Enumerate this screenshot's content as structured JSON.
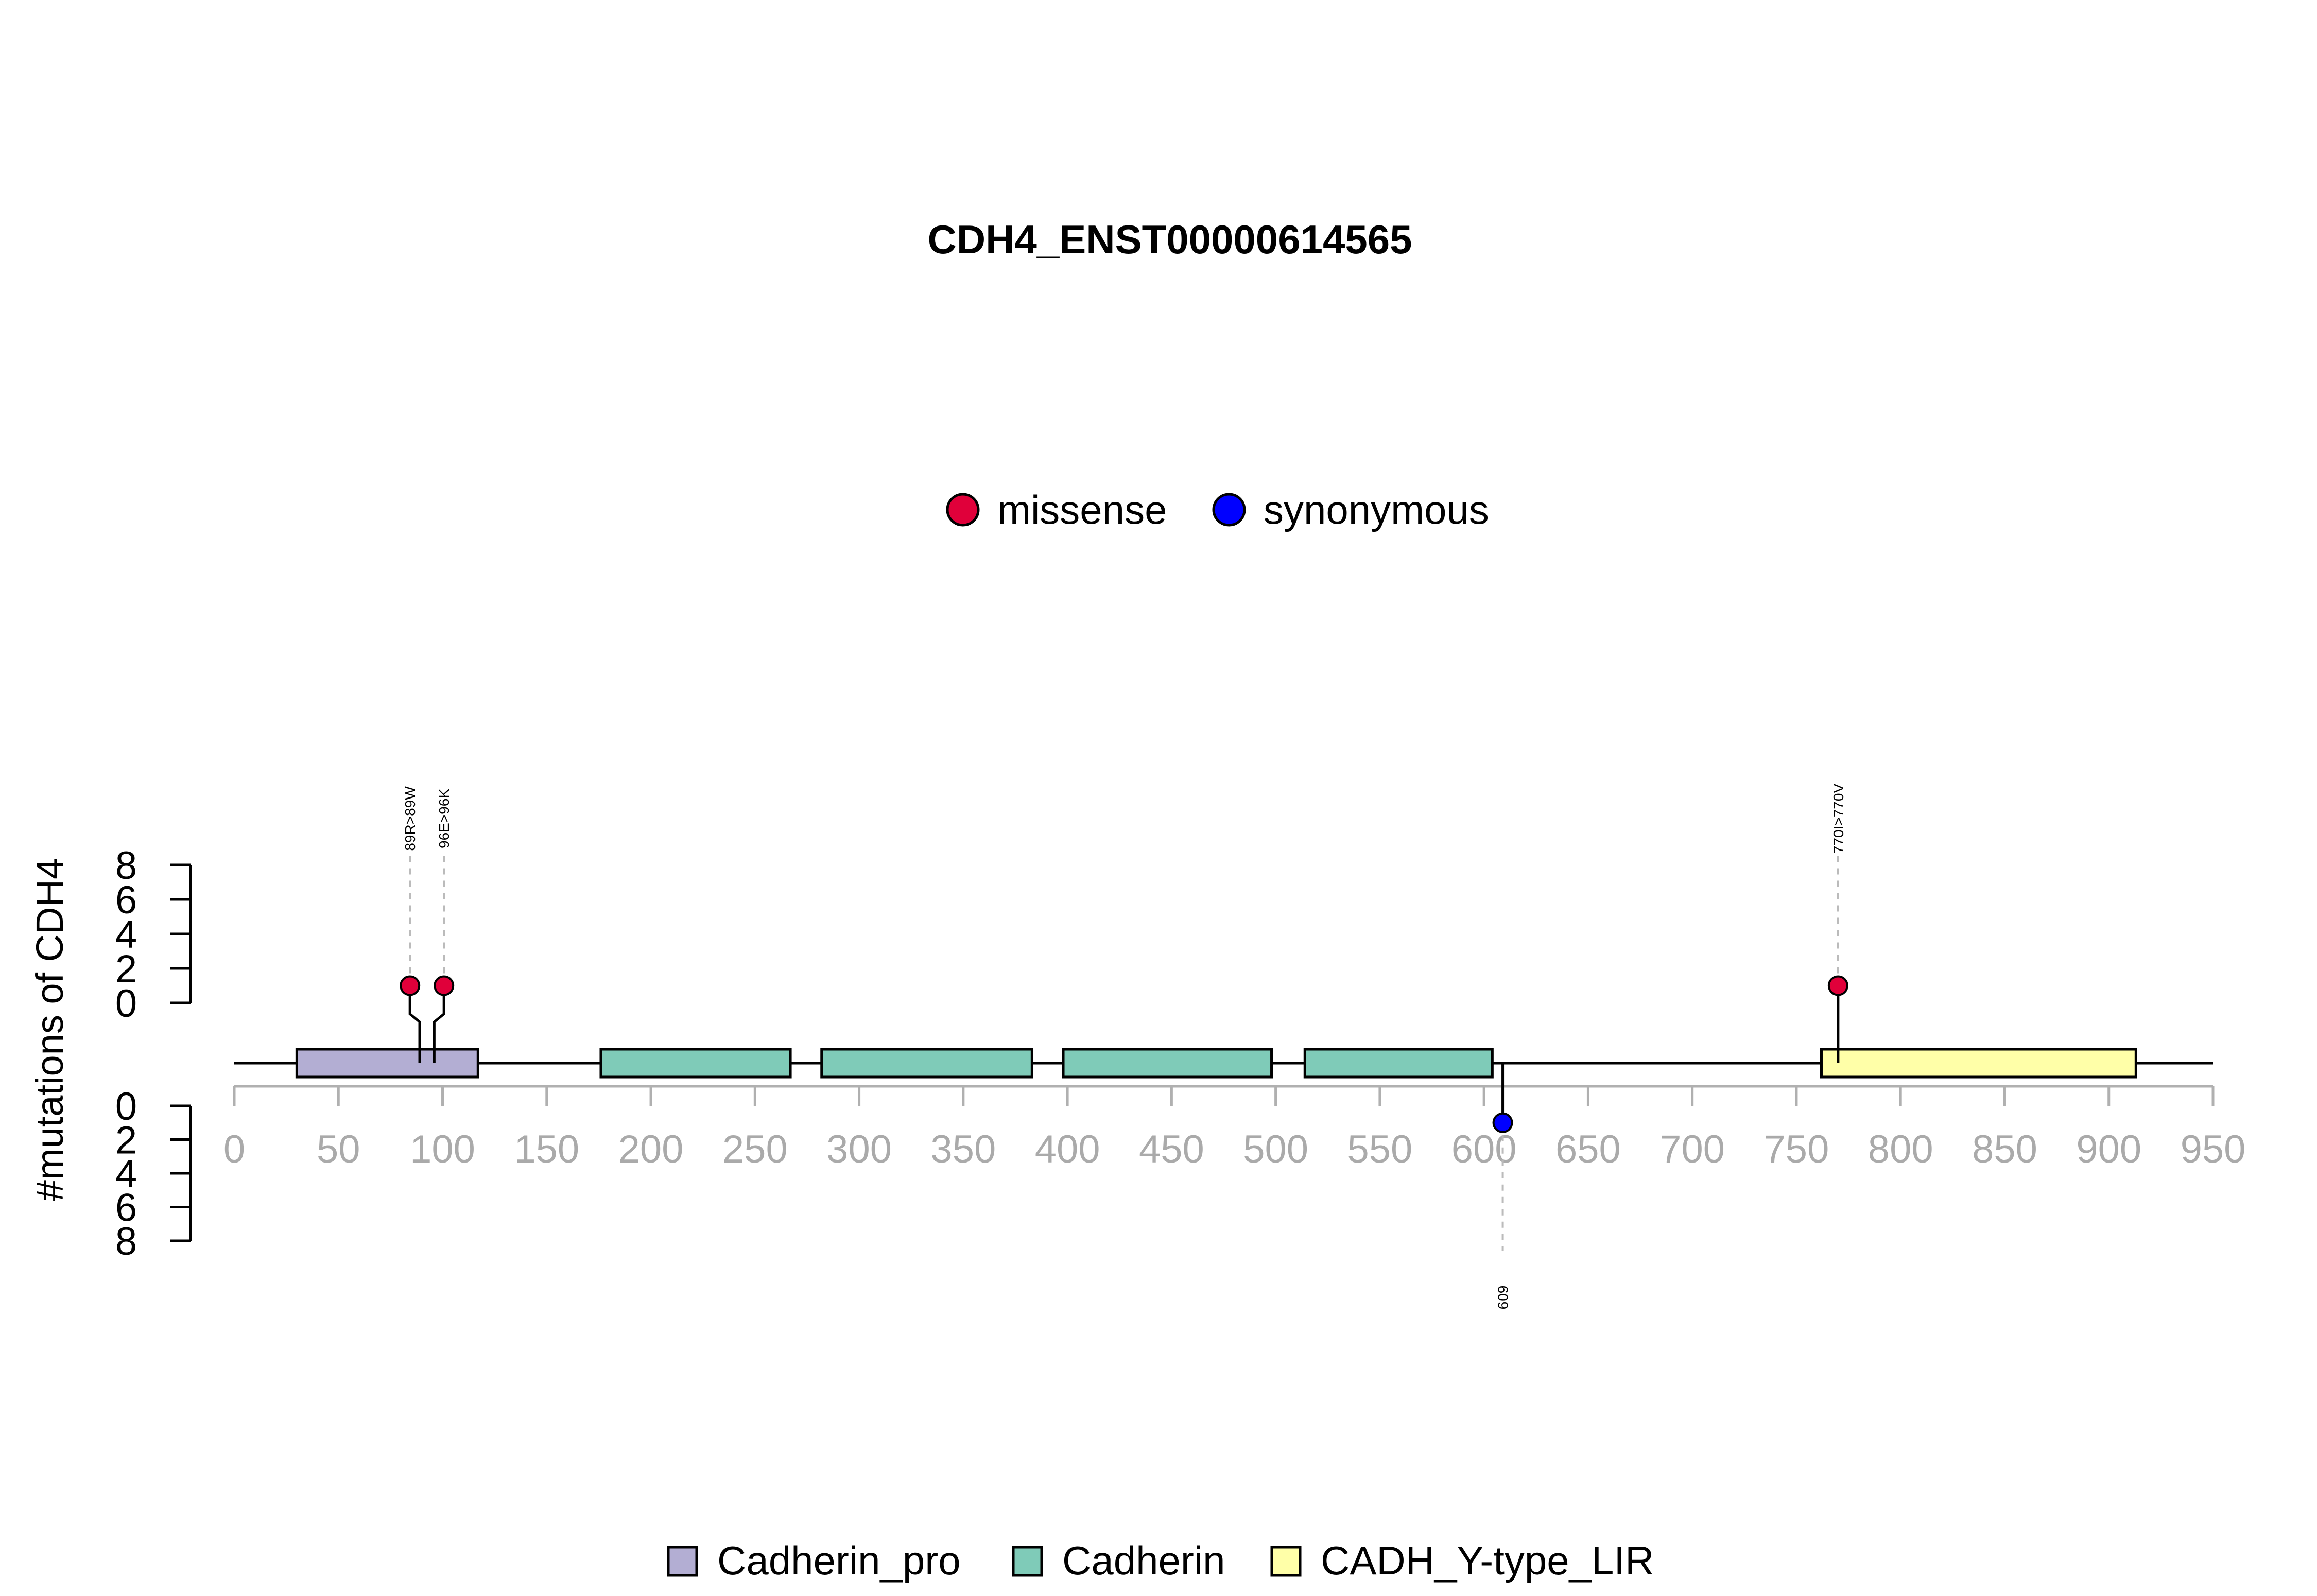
{
  "chart_data": {
    "type": "lollipop",
    "title": "CDH4_ENST00000614565",
    "ylabel": "#mutations of CDH4",
    "xlim": [
      0,
      950
    ],
    "x_ticks": [
      0,
      50,
      100,
      150,
      200,
      250,
      300,
      350,
      400,
      450,
      500,
      550,
      600,
      650,
      700,
      750,
      800,
      850,
      900,
      950
    ],
    "y_ticks_top": [
      0,
      2,
      4,
      6,
      8
    ],
    "y_ticks_bottom": [
      0,
      2,
      4,
      6,
      8
    ],
    "mutation_legend": [
      {
        "label": "missense",
        "color": "#e0003a"
      },
      {
        "label": "synonymous",
        "color": "#0000ff"
      }
    ],
    "mutations": [
      {
        "label": "89R>89W",
        "position": 89,
        "count": 1,
        "type": "missense",
        "side": "top"
      },
      {
        "label": "96E>96K",
        "position": 96,
        "count": 1,
        "type": "missense",
        "side": "top"
      },
      {
        "label": "770I>770V",
        "position": 770,
        "count": 1,
        "type": "missense",
        "side": "top"
      },
      {
        "label": "609",
        "position": 609,
        "count": 1,
        "type": "synonymous",
        "side": "bottom"
      }
    ],
    "domains": [
      {
        "name": "Cadherin_pro",
        "start": 30,
        "end": 117,
        "color": "#b3aed3"
      },
      {
        "name": "Cadherin",
        "start": 176,
        "end": 267,
        "color": "#7fcbb8"
      },
      {
        "name": "Cadherin",
        "start": 282,
        "end": 383,
        "color": "#7fcbb8"
      },
      {
        "name": "Cadherin",
        "start": 398,
        "end": 498,
        "color": "#7fcbb8"
      },
      {
        "name": "Cadherin",
        "start": 514,
        "end": 604,
        "color": "#7fcbb8"
      },
      {
        "name": "CADH_Y-type_LIR",
        "start": 762,
        "end": 913,
        "color": "#ffffa8"
      }
    ],
    "domain_legend": [
      {
        "label": "Cadherin_pro",
        "color": "#b3aed3"
      },
      {
        "label": "Cadherin",
        "color": "#7fcbb8"
      },
      {
        "label": "CADH_Y-type_LIR",
        "color": "#ffffa8"
      }
    ]
  }
}
